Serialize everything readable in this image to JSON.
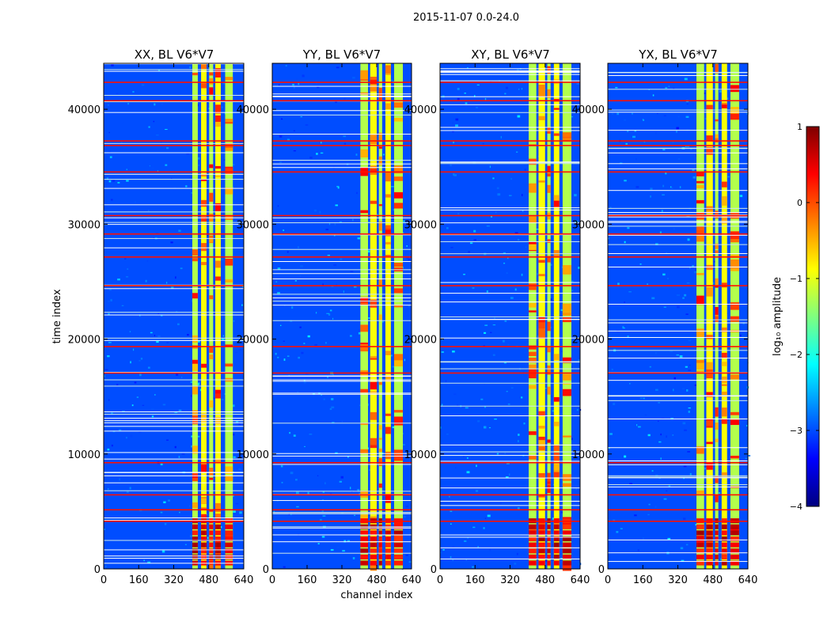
{
  "figure": {
    "suptitle": "2015-11-07 0.0-24.0"
  },
  "chart_data": [
    {
      "type": "heatmap",
      "title": "XX, BL V6*V7",
      "xlabel": "",
      "ylabel": "time index",
      "xlim": [
        0,
        640
      ],
      "ylim": [
        0,
        44000
      ],
      "xticks": [
        0,
        160,
        320,
        480,
        640
      ],
      "yticks": [
        0,
        10000,
        20000,
        30000,
        40000
      ],
      "bright_channel_bands": [
        [
          405,
          430
        ],
        [
          445,
          470
        ],
        [
          482,
          500
        ],
        [
          510,
          535
        ],
        [
          555,
          590
        ]
      ]
    },
    {
      "type": "heatmap",
      "title": "YY, BL V6*V7",
      "xlabel": "channel index",
      "ylabel": "",
      "xlim": [
        0,
        640
      ],
      "ylim": [
        0,
        44000
      ],
      "xticks": [
        0,
        160,
        320,
        480,
        640
      ],
      "yticks": [
        0,
        10000,
        20000,
        30000,
        40000
      ],
      "bright_channel_bands": [
        [
          405,
          440
        ],
        [
          450,
          480
        ],
        [
          490,
          505
        ],
        [
          520,
          545
        ],
        [
          560,
          600
        ]
      ]
    },
    {
      "type": "heatmap",
      "title": "XY, BL V6*V7",
      "xlabel": "",
      "ylabel": "",
      "xlim": [
        0,
        640
      ],
      "ylim": [
        0,
        44000
      ],
      "xticks": [
        0,
        160,
        320,
        480,
        640
      ],
      "yticks": [
        0,
        10000,
        20000,
        30000,
        40000
      ],
      "bright_channel_bands": [
        [
          405,
          440
        ],
        [
          450,
          480
        ],
        [
          490,
          505
        ],
        [
          520,
          545
        ],
        [
          560,
          600
        ]
      ]
    },
    {
      "type": "heatmap",
      "title": "YX, BL V6*V7",
      "xlabel": "",
      "ylabel": "",
      "xlim": [
        0,
        640
      ],
      "ylim": [
        0,
        44000
      ],
      "xticks": [
        0,
        160,
        320,
        480,
        640
      ],
      "yticks": [
        0,
        10000,
        20000,
        30000,
        40000
      ],
      "bright_channel_bands": [
        [
          405,
          440
        ],
        [
          450,
          480
        ],
        [
          490,
          505
        ],
        [
          520,
          545
        ],
        [
          560,
          600
        ]
      ]
    }
  ],
  "colorbar": {
    "label": "log₁₀ amplitude",
    "range": [
      -4,
      1
    ],
    "ticks": [
      "1",
      "0",
      "−1",
      "−2",
      "−3",
      "−4"
    ],
    "colors": [
      "#7f0000",
      "#ff0000",
      "#ff7f00",
      "#ffff00",
      "#7fff7f",
      "#00ffff",
      "#007fff",
      "#0000ff",
      "#00007f"
    ]
  },
  "features": {
    "rfi_time_rows": [
      4200,
      5200,
      6500,
      9300,
      17100,
      19400,
      24700,
      27200,
      29200,
      30800,
      34600,
      36900,
      37300,
      40800,
      42400
    ],
    "bright_time_block": [
      200,
      4400
    ]
  }
}
